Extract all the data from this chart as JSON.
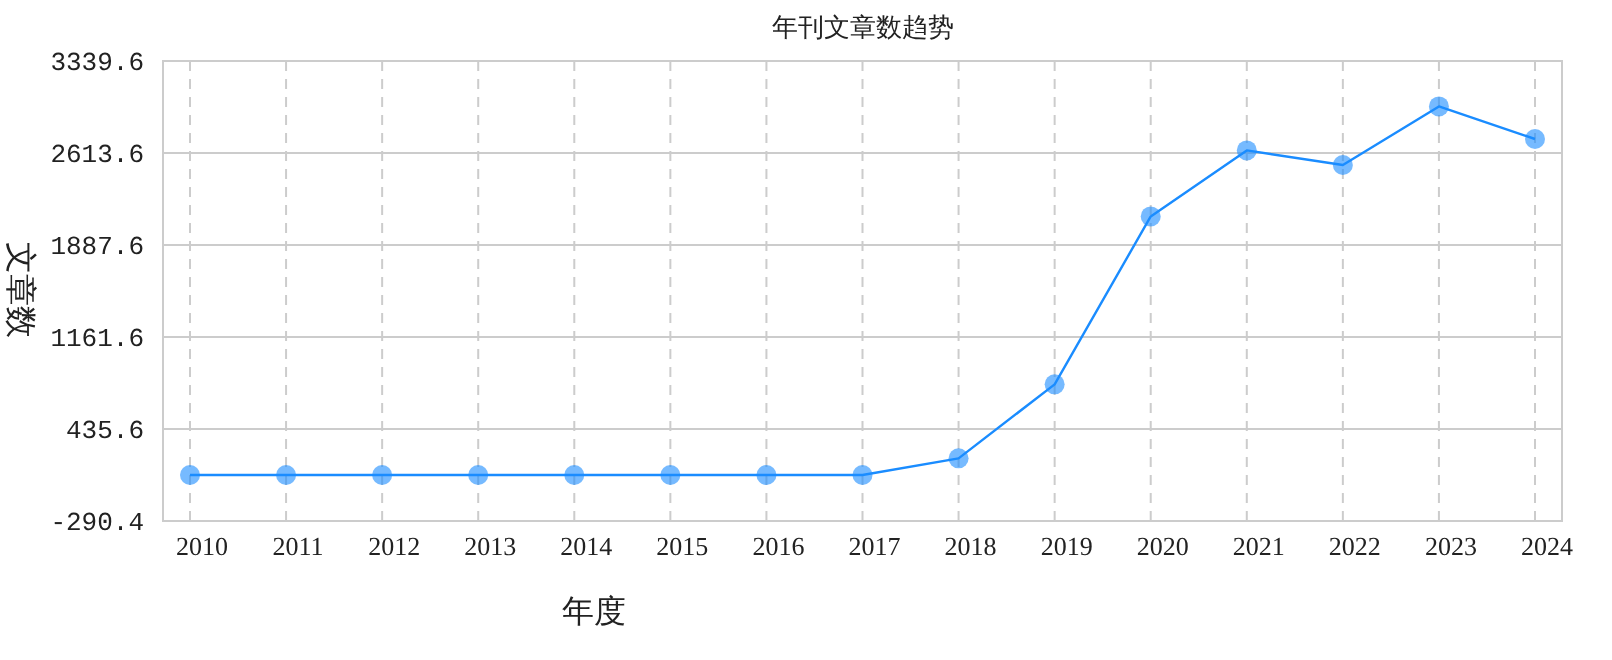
{
  "chart_data": {
    "type": "line",
    "title": "年刊文章数趋势",
    "xlabel": "年度",
    "ylabel": "文章数",
    "categories": [
      "2010",
      "2011",
      "2012",
      "2013",
      "2014",
      "2015",
      "2016",
      "2017",
      "2018",
      "2019",
      "2020",
      "2021",
      "2022",
      "2023",
      "2024"
    ],
    "series": [
      {
        "color": "#1a8cff",
        "values": [
          73,
          73,
          73,
          73,
          73,
          73,
          73,
          73,
          204,
          788,
          2113,
          2634,
          2519,
          2981,
          2724
        ]
      }
    ],
    "ylim": [
      -290.4,
      3339.6
    ],
    "yticks": [
      -290.4,
      435.6,
      1161.6,
      1887.6,
      2613.6,
      3339.6
    ],
    "grid": true,
    "marker": "circle"
  }
}
